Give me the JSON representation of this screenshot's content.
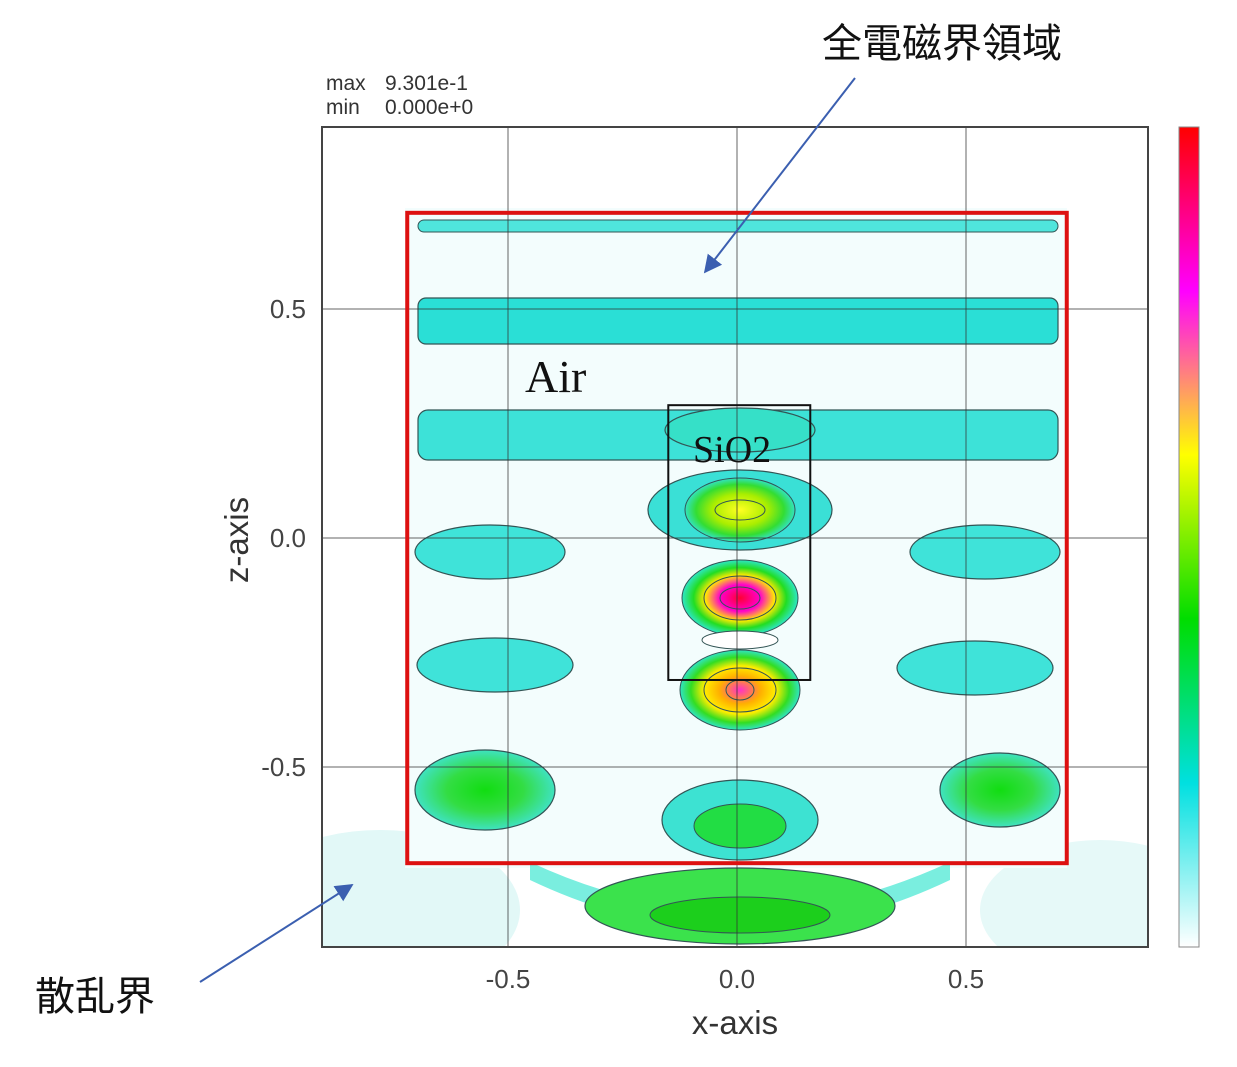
{
  "chart_data": {
    "type": "heatmap",
    "xlabel": "x-axis",
    "ylabel": "z-axis",
    "xlim": [
      -0.9,
      0.9
    ],
    "ylim": [
      -0.9,
      0.9
    ],
    "x_ticks": [
      {
        "value": -0.5,
        "label": "-0.5"
      },
      {
        "value": 0.0,
        "label": "0.0"
      },
      {
        "value": 0.5,
        "label": "0.5"
      }
    ],
    "y_ticks": [
      {
        "value": 0.5,
        "label": "0.5"
      },
      {
        "value": 0.0,
        "label": "0.0"
      },
      {
        "value": -0.5,
        "label": "-0.5"
      }
    ],
    "grid": true,
    "legend_placement": "right",
    "range_text": {
      "max_label": "max",
      "max_value": "9.301e-1",
      "min_label": "min",
      "min_value": "0.000e+0"
    },
    "colorbar": {
      "min": 0.0,
      "max": 0.9301,
      "colors": [
        "#ffffff",
        "#00e0e0",
        "#00dd00",
        "#ffff00",
        "#ff00ff",
        "#ff0000"
      ]
    },
    "total_field_region": {
      "x": [
        -0.72,
        0.72
      ],
      "z": [
        -0.71,
        0.71
      ],
      "color": "#dd1111"
    },
    "sio2_block": {
      "x": [
        -0.15,
        0.16
      ],
      "z": [
        -0.31,
        0.29
      ]
    },
    "annotations": {
      "total_field": "全電磁界領域",
      "scattered_field": "散乱界",
      "air": "Air",
      "sio2": "SiO2"
    },
    "arrow_color": "#3b5fb0"
  }
}
